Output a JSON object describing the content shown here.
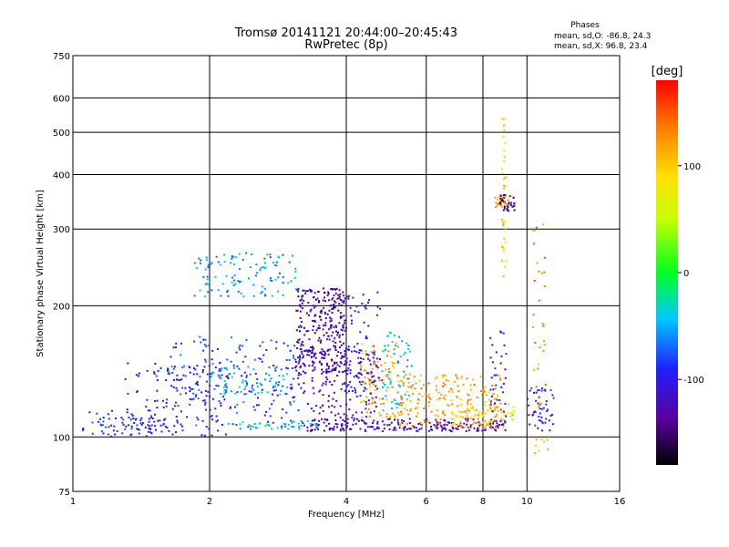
{
  "header": {
    "title_line1": "Tromsø 20141121 20:44:00–20:45:43",
    "title_line2": "RwPretec (8p)",
    "phases_heading": "Phases",
    "phases_o": "mean, sd,O: -86.8, 24.3",
    "phases_x": "mean, sd,X:  96.8, 23.4"
  },
  "chart_data": {
    "type": "scatter",
    "title": "Tromsø 20141121 20:44:00–20:45:43",
    "subtitle": "RwPretec (8p)",
    "xlabel": "Frequency [MHz]",
    "ylabel": "Stationary phase Virtual Height [km]",
    "x_scale": "log",
    "y_scale": "log",
    "xlim": [
      1,
      16
    ],
    "ylim": [
      75,
      750
    ],
    "x_ticks": [
      1,
      2,
      4,
      6,
      8,
      10,
      16
    ],
    "x_tick_labels": [
      "1",
      "2",
      "4",
      "6",
      "8",
      "10",
      "16"
    ],
    "y_ticks": [
      75,
      100,
      200,
      300,
      400,
      500,
      600,
      750
    ],
    "y_tick_labels": [
      "75",
      "100",
      "200",
      "300",
      "400",
      "500",
      "600",
      "750"
    ],
    "grid": true,
    "colorbar": {
      "label": "[deg]",
      "min": -180,
      "max": 180,
      "ticks": [
        -100,
        0,
        100
      ],
      "tick_labels": [
        "-100",
        "0",
        "100"
      ]
    },
    "clusters": [
      {
        "f_min": 1.05,
        "f_max": 1.6,
        "h_min": 100,
        "h_max": 115,
        "phase": -95,
        "n": 70
      },
      {
        "f_min": 1.3,
        "f_max": 2.2,
        "h_min": 100,
        "h_max": 150,
        "phase": -100,
        "n": 120
      },
      {
        "f_min": 1.6,
        "f_max": 3.2,
        "h_min": 105,
        "h_max": 170,
        "phase": -85,
        "n": 200
      },
      {
        "f_min": 2.0,
        "f_max": 3.0,
        "h_min": 125,
        "h_max": 145,
        "phase": -45,
        "n": 60
      },
      {
        "f_min": 1.85,
        "f_max": 3.1,
        "h_min": 210,
        "h_max": 265,
        "phase": -55,
        "n": 110
      },
      {
        "f_min": 3.1,
        "f_max": 4.0,
        "h_min": 140,
        "h_max": 220,
        "phase": -135,
        "n": 280
      },
      {
        "f_min": 3.0,
        "f_max": 4.7,
        "h_min": 110,
        "h_max": 160,
        "phase": -115,
        "n": 160
      },
      {
        "f_min": 3.9,
        "f_max": 4.8,
        "h_min": 120,
        "h_max": 215,
        "phase": -110,
        "n": 90
      },
      {
        "f_min": 3.2,
        "f_max": 9.0,
        "h_min": 103,
        "h_max": 110,
        "phase": -125,
        "n": 220
      },
      {
        "f_min": 2.2,
        "f_max": 3.5,
        "h_min": 104,
        "h_max": 109,
        "phase": -40,
        "n": 40
      },
      {
        "f_min": 4.3,
        "f_max": 5.2,
        "h_min": 110,
        "h_max": 165,
        "phase": 115,
        "n": 80
      },
      {
        "f_min": 4.8,
        "f_max": 5.6,
        "h_min": 115,
        "h_max": 175,
        "phase": -40,
        "n": 60
      },
      {
        "f_min": 5.2,
        "f_max": 8.8,
        "h_min": 105,
        "h_max": 140,
        "phase": 120,
        "n": 200
      },
      {
        "f_min": 6.8,
        "f_max": 9.4,
        "h_min": 105,
        "h_max": 120,
        "phase": 90,
        "n": 70
      },
      {
        "f_min": 8.3,
        "f_max": 9.0,
        "h_min": 105,
        "h_max": 175,
        "phase": -100,
        "n": 40
      },
      {
        "f_min": 8.7,
        "f_max": 9.4,
        "h_min": 330,
        "h_max": 360,
        "phase": -145,
        "n": 40
      },
      {
        "f_min": 8.5,
        "f_max": 9.1,
        "h_min": 335,
        "h_max": 355,
        "phase": 125,
        "n": 14
      },
      {
        "f_min": 8.8,
        "f_max": 9.0,
        "h_min": 230,
        "h_max": 560,
        "phase": 95,
        "n": 40
      },
      {
        "f_min": 10.0,
        "f_max": 11.5,
        "h_min": 102,
        "h_max": 130,
        "phase": -100,
        "n": 50
      },
      {
        "f_min": 10.3,
        "f_max": 11.0,
        "h_min": 115,
        "h_max": 310,
        "phase": 130,
        "n": 30
      },
      {
        "f_min": 10.4,
        "f_max": 11.2,
        "h_min": 90,
        "h_max": 100,
        "phase": 110,
        "n": 8
      }
    ]
  }
}
